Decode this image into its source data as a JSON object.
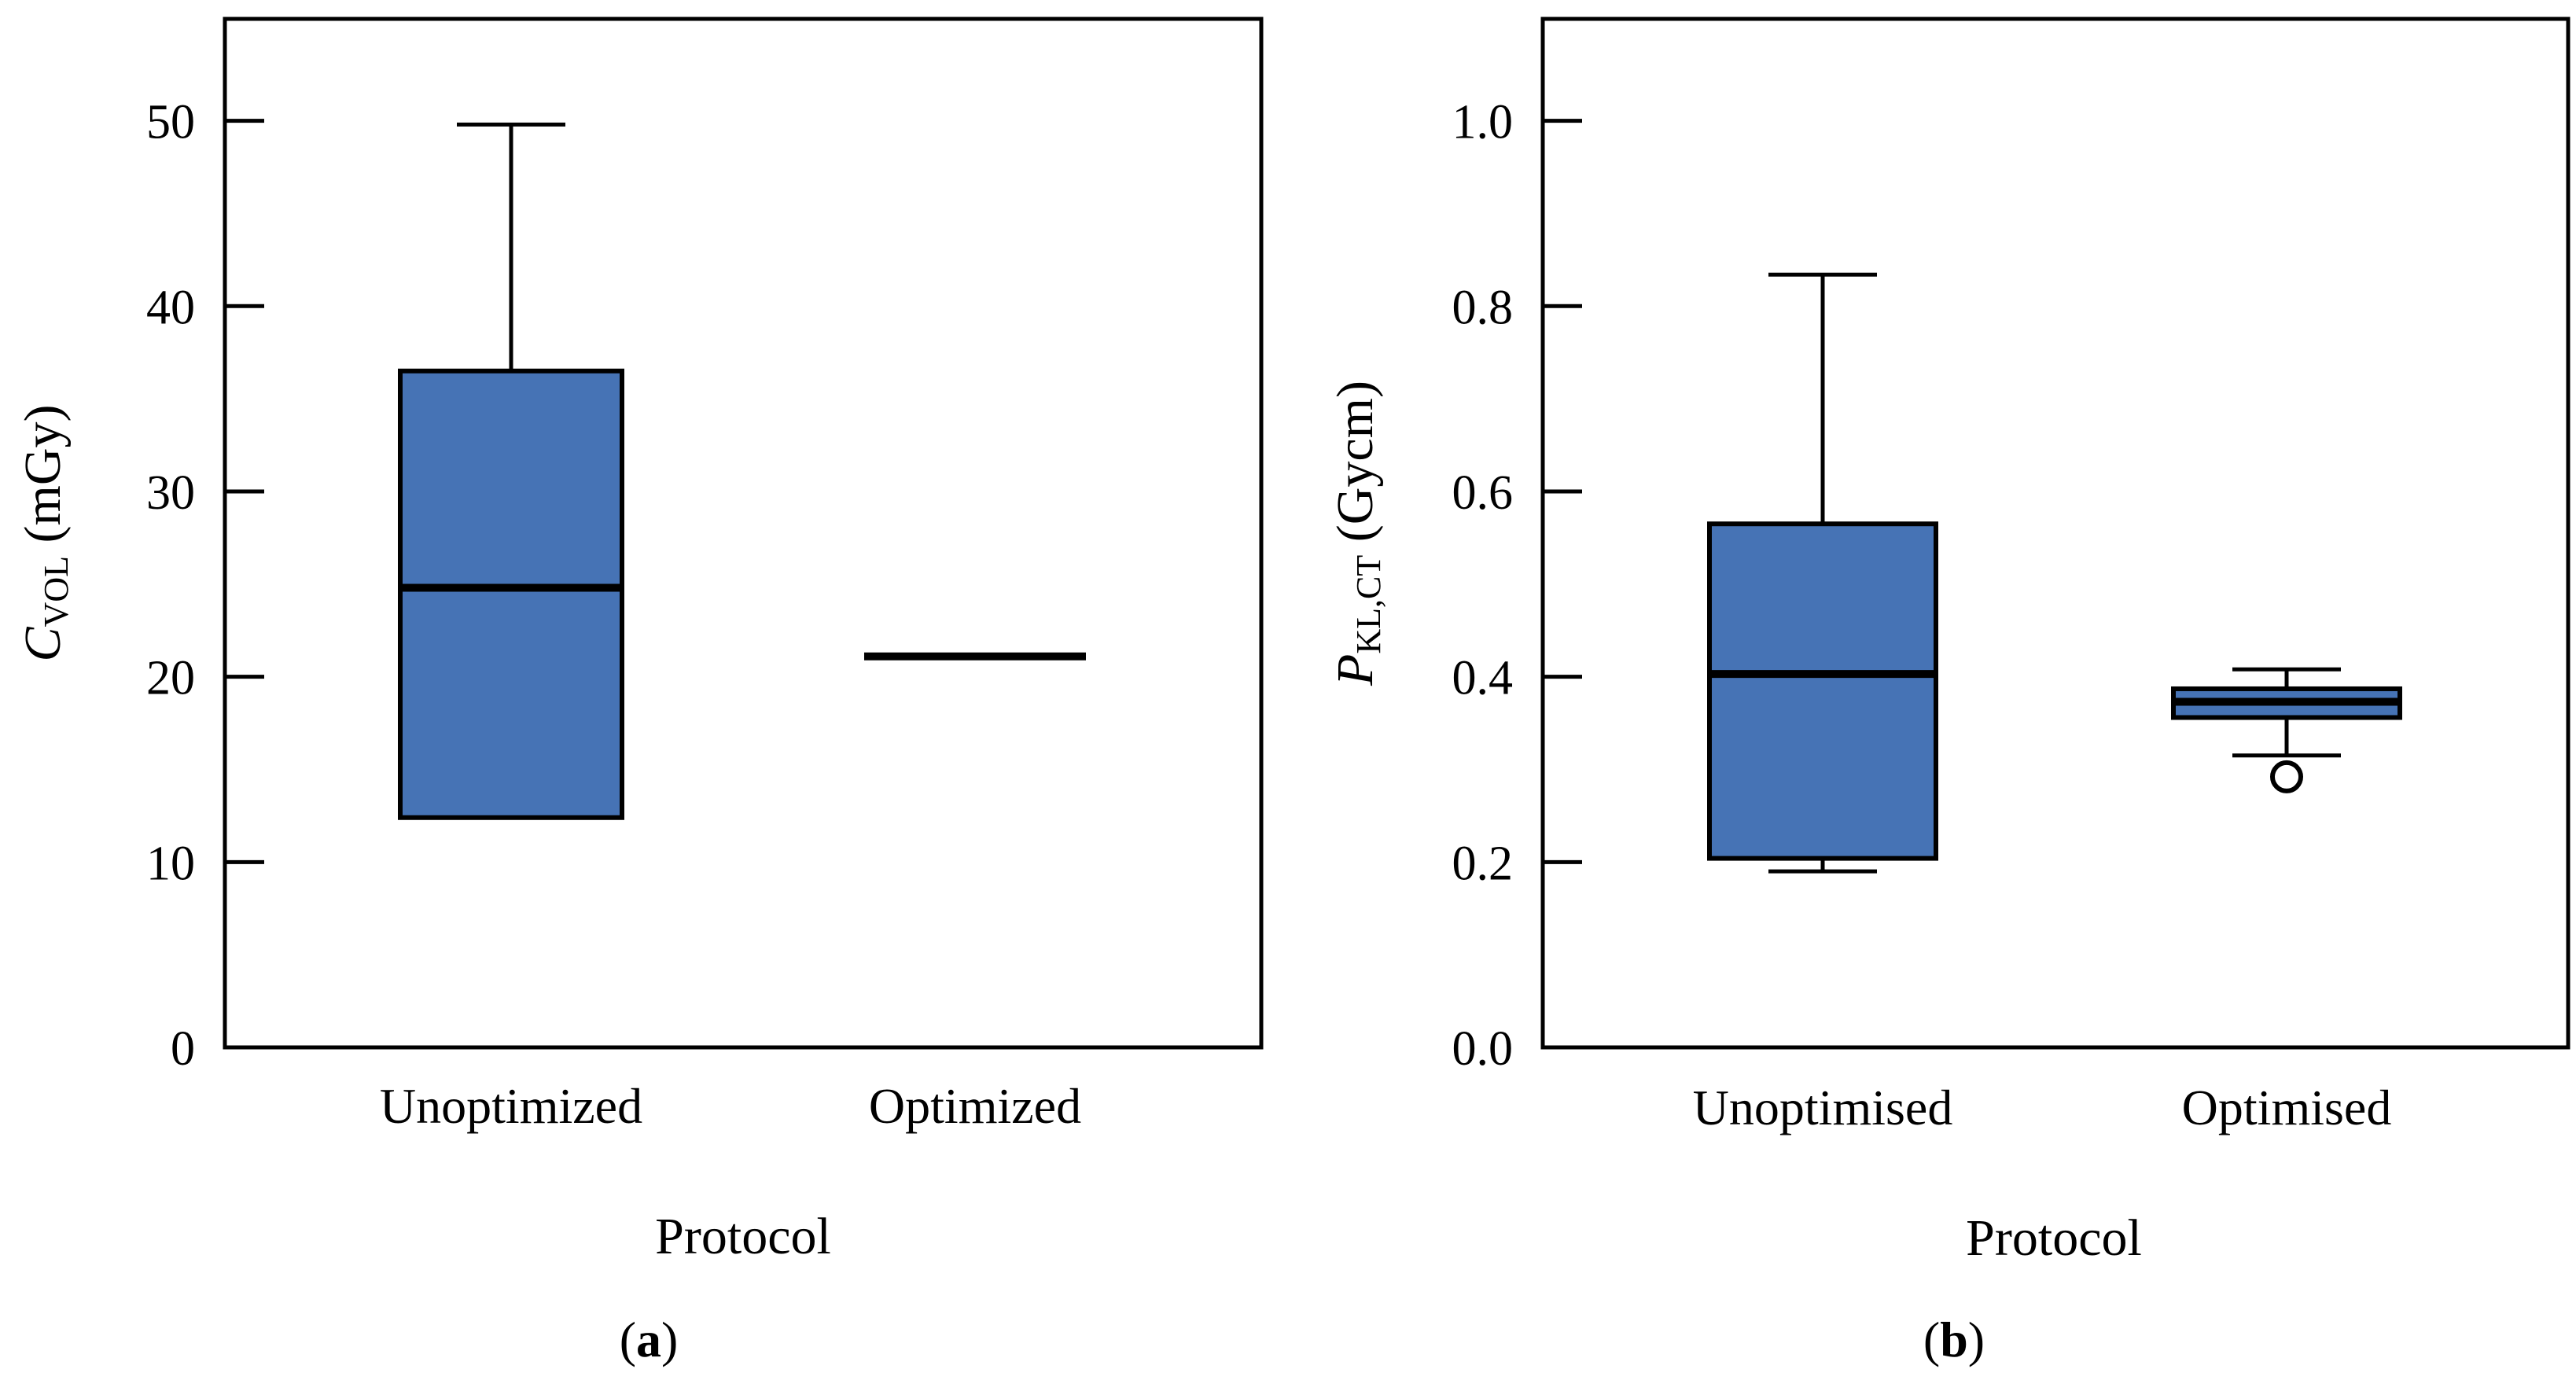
{
  "colors": {
    "box_fill": "#4673b5",
    "line": "#000000",
    "background": "#ffffff"
  },
  "chart_data": [
    {
      "type": "box",
      "panel_label": {
        "open": "(",
        "letter": "a",
        "close": ")"
      },
      "xlabel": "Protocol",
      "ylabel": {
        "symbol": "C",
        "subscript": "VOL",
        "unit": " (mGy)"
      },
      "ylim": [
        0,
        55.5
      ],
      "yticks": [
        0,
        10,
        20,
        30,
        40,
        50
      ],
      "ytick_labels": [
        "0",
        "10",
        "20",
        "30",
        "40",
        "50"
      ],
      "categories": [
        "Unoptimized",
        "Optimized"
      ],
      "boxes": [
        {
          "category": "Unoptimized",
          "whisker_low": 12.4,
          "q1": 12.4,
          "median": 24.8,
          "q3": 36.5,
          "whisker_high": 49.8,
          "outliers": []
        },
        {
          "category": "Optimized",
          "whisker_low": 21.1,
          "q1": 21.1,
          "median": 21.1,
          "q3": 21.1,
          "whisker_high": 21.1,
          "outliers": []
        }
      ]
    },
    {
      "type": "box",
      "panel_label": {
        "open": "(",
        "letter": "b",
        "close": ")"
      },
      "xlabel": "Protocol",
      "ylabel": {
        "symbol": "P",
        "subscript": "KL,CT",
        "unit": " (Gycm)"
      },
      "ylim": [
        0,
        1.11
      ],
      "yticks": [
        0,
        0.2,
        0.4,
        0.6,
        0.8,
        1.0
      ],
      "ytick_labels": [
        "0.0",
        "0.2",
        "0.4",
        "0.6",
        "0.8",
        "1.0"
      ],
      "categories": [
        "Unoptimised",
        "Optimised"
      ],
      "boxes": [
        {
          "category": "Unoptimised",
          "whisker_low": 0.19,
          "q1": 0.204,
          "median": 0.403,
          "q3": 0.565,
          "whisker_high": 0.834,
          "outliers": []
        },
        {
          "category": "Optimised",
          "whisker_low": 0.315,
          "q1": 0.356,
          "median": 0.373,
          "q3": 0.387,
          "whisker_high": 0.408,
          "outliers": [
            0.292
          ]
        }
      ]
    }
  ]
}
